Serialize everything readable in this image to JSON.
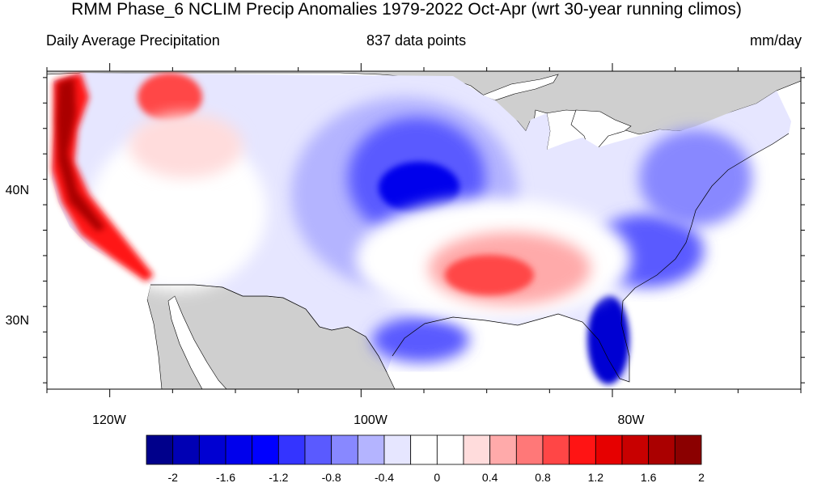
{
  "title": "RMM Phase_6 NCLIM Precip Anomalies 1979-2022 Oct-Apr (wrt 30-year running climos)",
  "subtitle_left": "Daily Average Precipitation",
  "subtitle_center": "837 data points",
  "subtitle_right": "mm/day",
  "map": {
    "lon_range": [
      -125,
      -65
    ],
    "lat_range": [
      24.5,
      49.5
    ],
    "lon_ticks": [
      {
        "label": "120W"
      },
      {
        "label": "100W"
      },
      {
        "label": "80W"
      }
    ],
    "lat_ticks": [
      {
        "label": "40N"
      },
      {
        "label": "30N"
      }
    ],
    "land_color": "#cfcfcf",
    "ocean_color": "#ffffff"
  },
  "colorbar": {
    "colors": [
      "#00008b",
      "#0000b4",
      "#0000d2",
      "#0000ec",
      "#0000ff",
      "#3434ff",
      "#5a5aff",
      "#8888ff",
      "#b4b4ff",
      "#e6e6ff",
      "#ffffff",
      "#ffffff",
      "#ffdcdc",
      "#ffaaaa",
      "#ff7878",
      "#ff4646",
      "#ff1414",
      "#e60000",
      "#c80000",
      "#aa0000",
      "#8b0000"
    ],
    "tick_labels": [
      "-2",
      "-1.6",
      "-1.2",
      "-0.8",
      "-0.4",
      "0",
      "0.4",
      "0.8",
      "1.2",
      "1.6",
      "2"
    ]
  }
}
